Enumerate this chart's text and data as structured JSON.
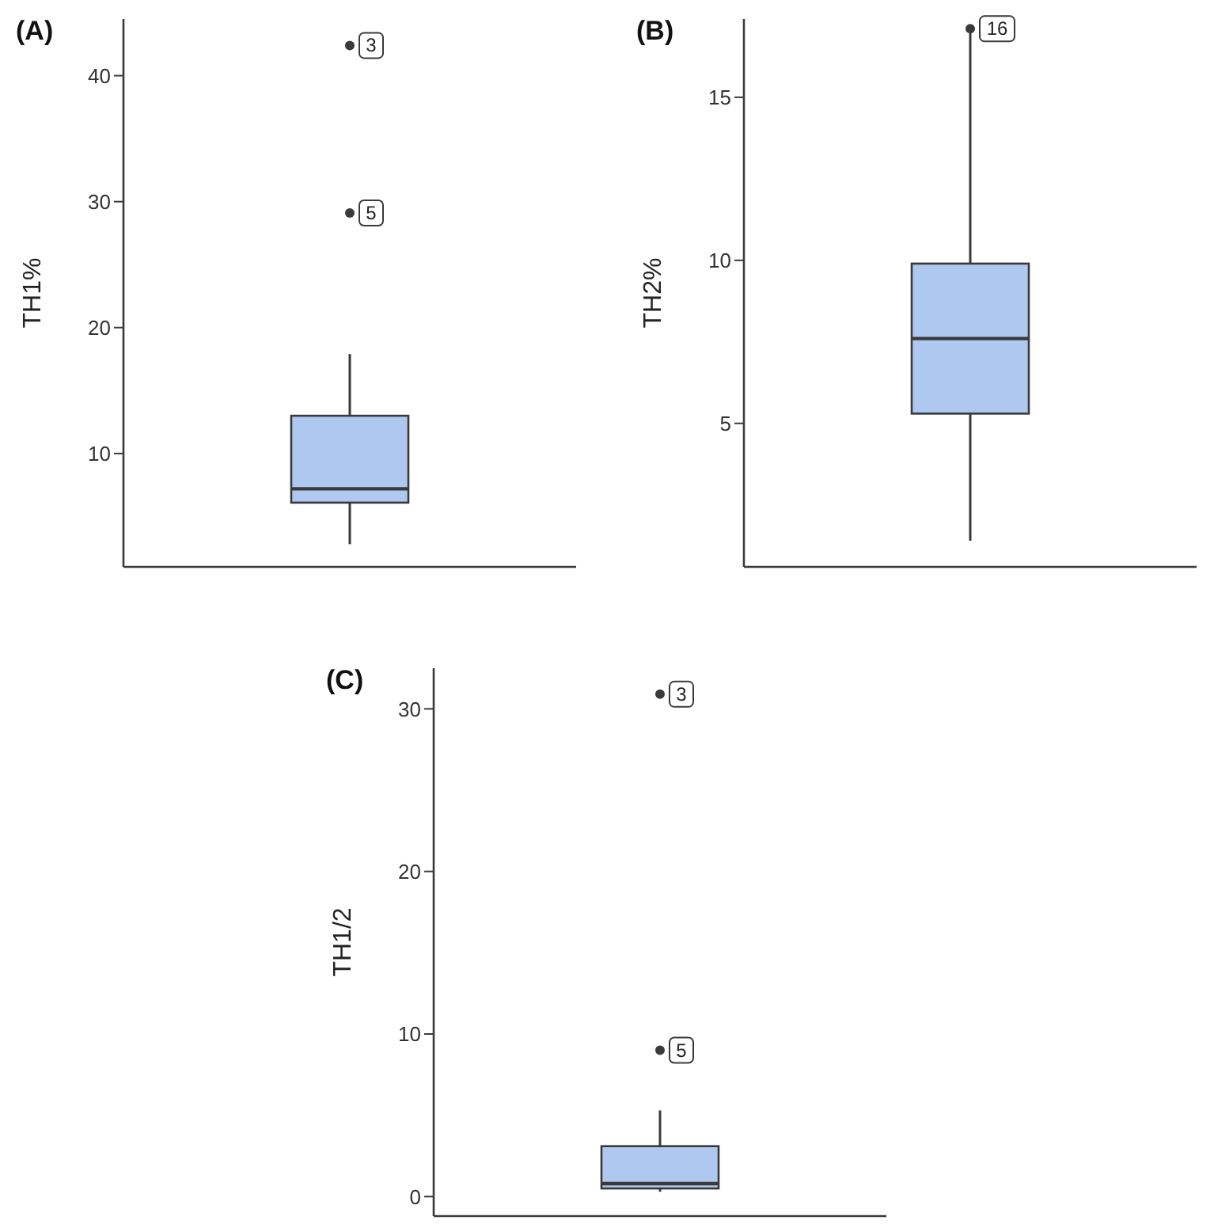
{
  "chart_data": [
    {
      "type": "box",
      "title": "(A)",
      "ylabel": "TH1%",
      "categories": [
        null
      ],
      "color": "#aec8f0",
      "boxes": [
        {
          "low": 2.8,
          "q1": 6.1,
          "median": 7.2,
          "q3": 13.0,
          "high": 17.9,
          "outliers": [
            42.4,
            29.1
          ]
        }
      ],
      "ylim": [
        1,
        44.5
      ],
      "yticks": [
        10,
        20,
        30,
        40
      ],
      "tick_labels": "y",
      "grid": false,
      "annotations": [
        {
          "text": "3",
          "y": 42.4
        },
        {
          "text": "5",
          "y": 29.1
        }
      ]
    },
    {
      "type": "box",
      "title": "(B)",
      "ylabel": "TH2%",
      "categories": [
        null
      ],
      "color": "#aec8f0",
      "boxes": [
        {
          "low": 1.4,
          "q1": 5.3,
          "median": 7.6,
          "q3": 9.9,
          "high": 17.0,
          "outliers": [
            17.1
          ]
        }
      ],
      "ylim": [
        0.6,
        17.4
      ],
      "yticks": [
        5,
        10,
        15
      ],
      "tick_labels": "y",
      "grid": false,
      "annotations": [
        {
          "text": "16",
          "y": 17.1
        }
      ]
    },
    {
      "type": "box",
      "title": "(C)",
      "ylabel": "TH1/2",
      "categories": [
        null
      ],
      "color": "#aec8f0",
      "boxes": [
        {
          "low": 0.3,
          "q1": 0.5,
          "median": 0.8,
          "q3": 3.1,
          "high": 5.3,
          "outliers": [
            30.9,
            9.0
          ]
        }
      ],
      "ylim": [
        -1.2,
        32.5
      ],
      "yticks": [
        0,
        10,
        20,
        30
      ],
      "tick_labels": "y",
      "grid": false,
      "annotations": [
        {
          "text": "3",
          "y": 30.9
        },
        {
          "text": "5",
          "y": 9.0
        }
      ]
    }
  ]
}
